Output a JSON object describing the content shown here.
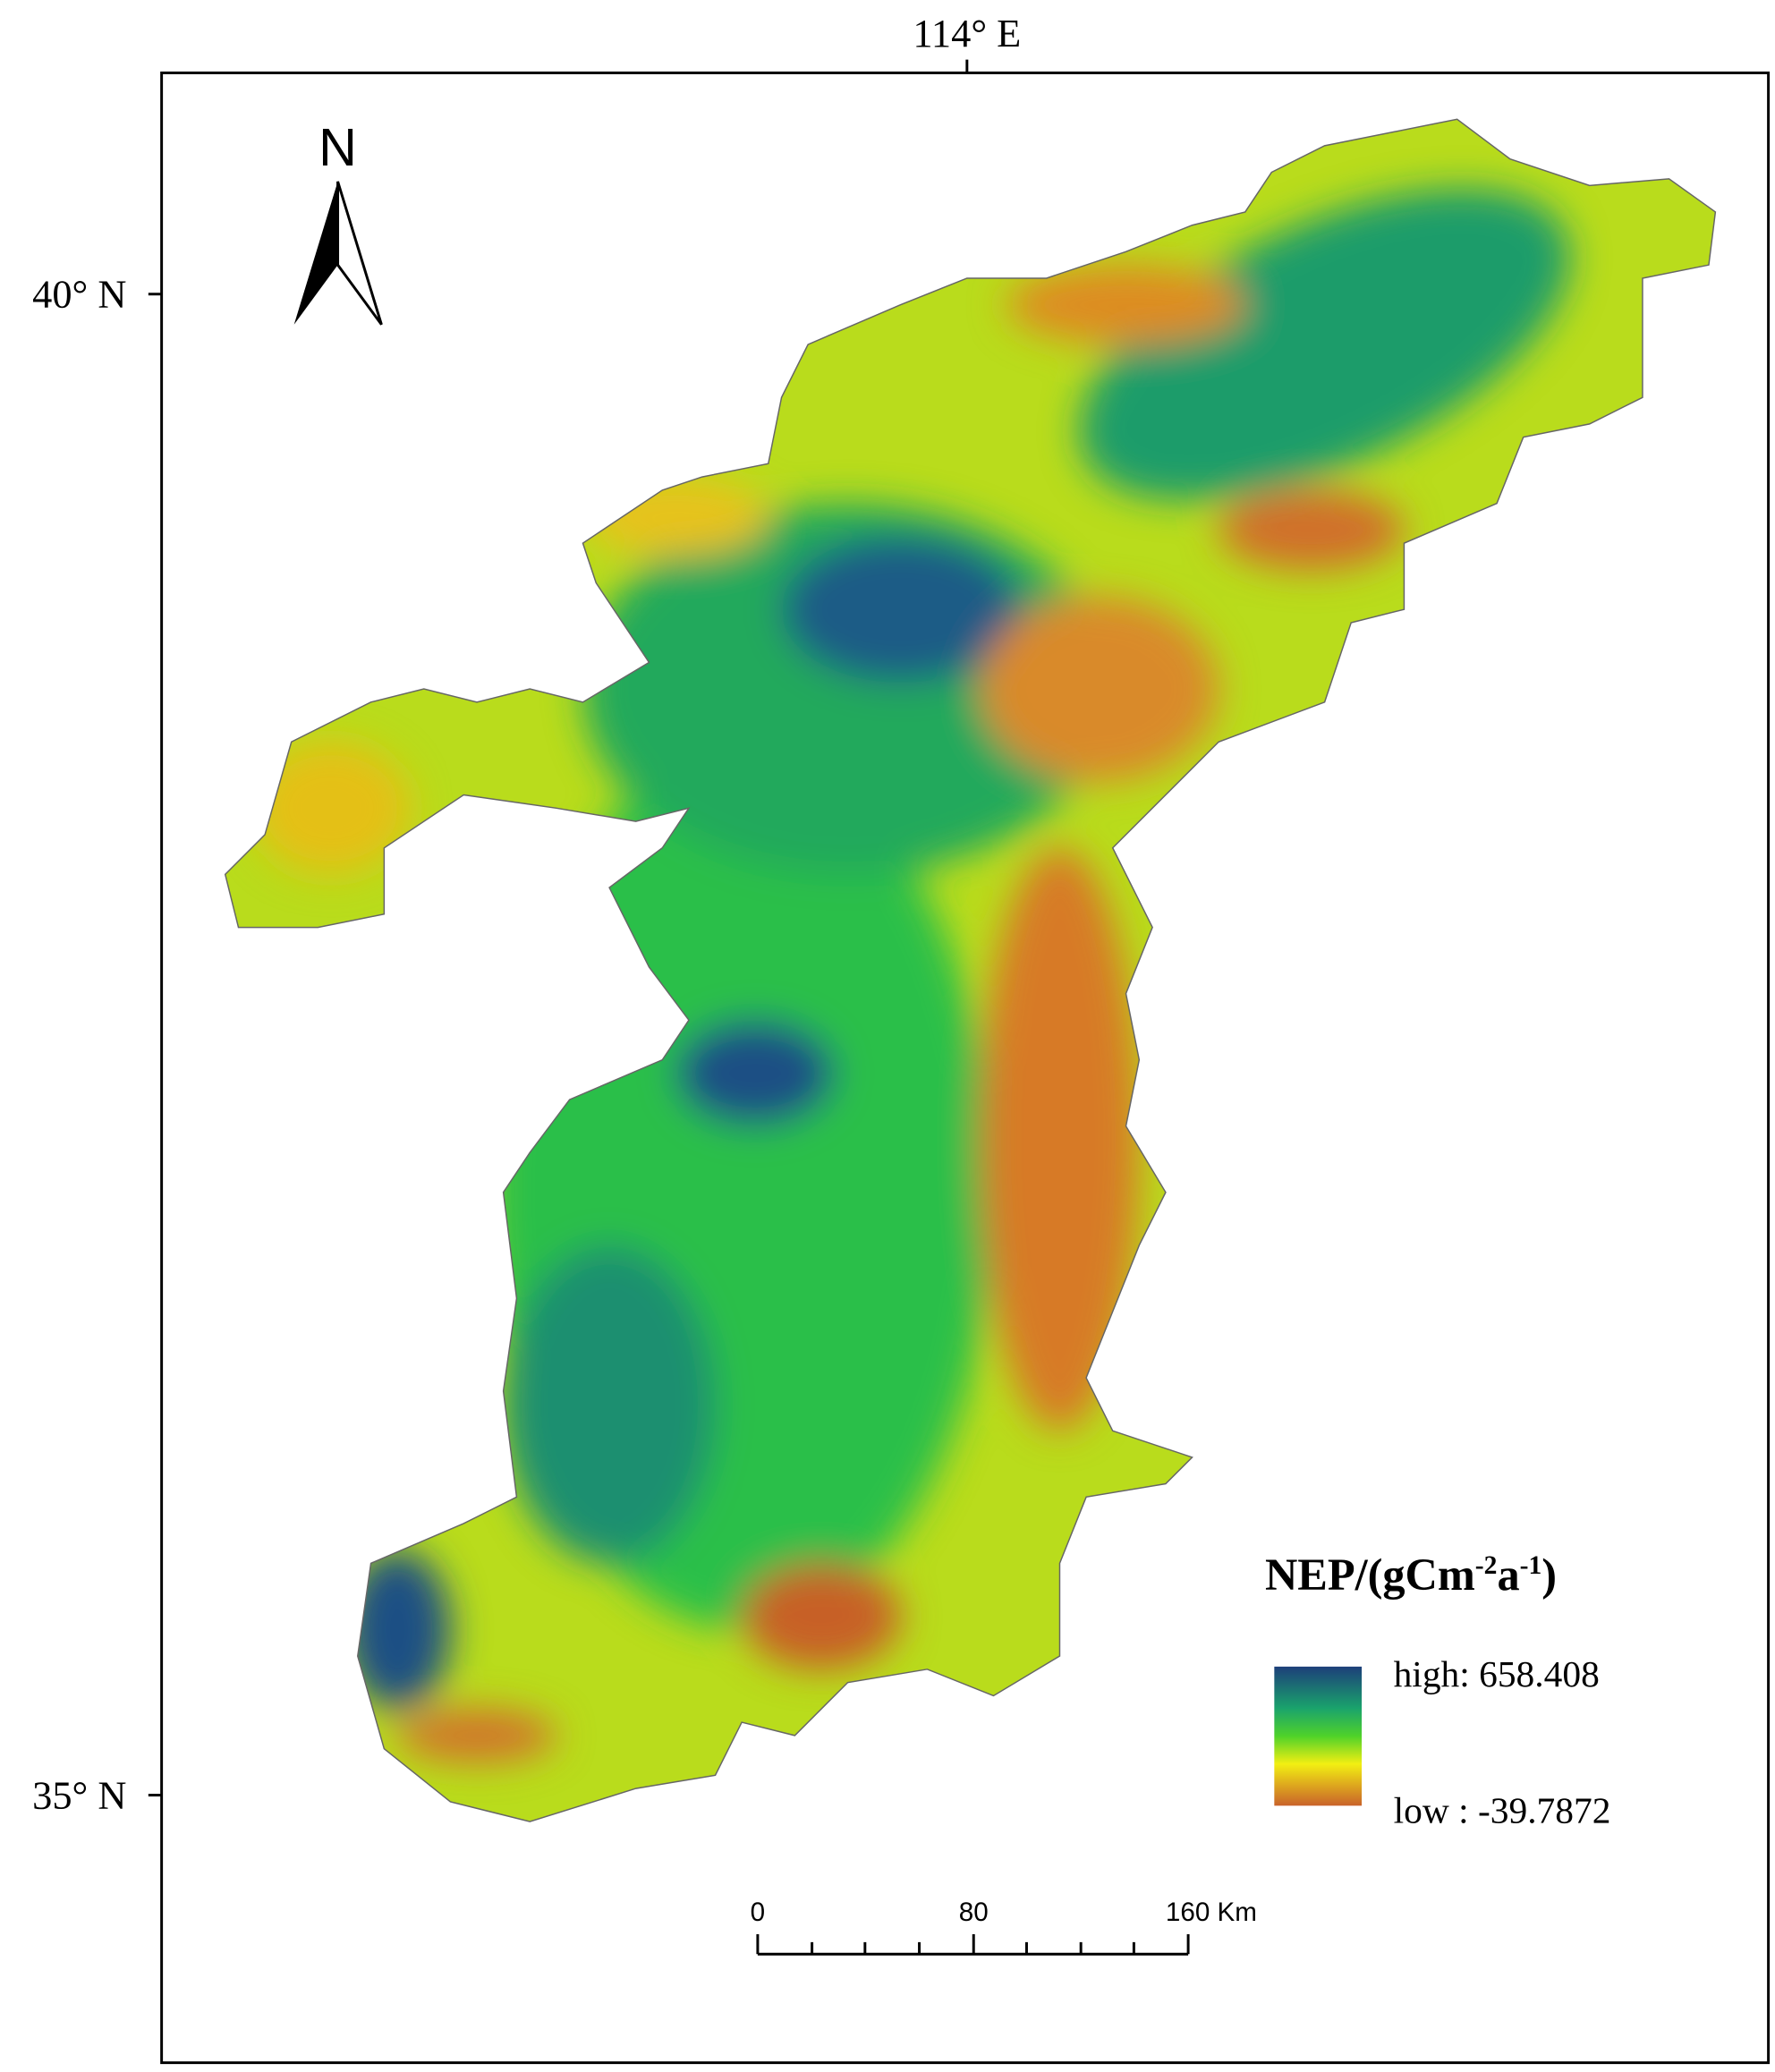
{
  "map": {
    "top_label": "114° E",
    "left_labels": [
      "40° N",
      "35° N"
    ],
    "north_arrow": "N",
    "legend": {
      "title": "NEP/(gCm",
      "title_sup1": "-2",
      "title_mid": "a",
      "title_sup2": "-1",
      "title_end": ")",
      "high": "high: 658.408",
      "low": "low : -39.7872"
    },
    "scale_bar": {
      "labels": [
        "0",
        "80",
        "160 Km"
      ]
    }
  }
}
